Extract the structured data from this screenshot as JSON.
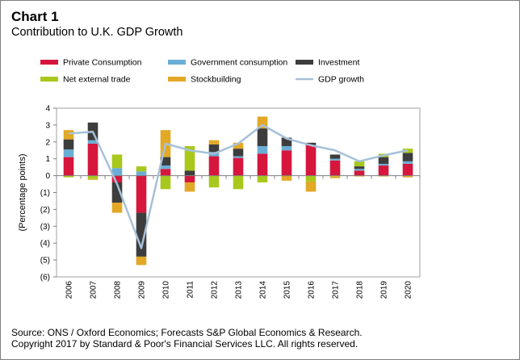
{
  "header": {
    "title": "Chart 1",
    "subtitle": "Contribution to U.K. GDP Growth"
  },
  "footer": {
    "source": "Source: ONS / Oxford Economics; Forecasts S&P Global Economics  & Research.",
    "copyright": "Copyright 2017 by Standard & Poor's Financial Services LLC. All rights reserved."
  },
  "chart_data": {
    "type": "bar",
    "stacked": true,
    "title": "Contribution to U.K. GDP Growth",
    "xlabel": "",
    "ylabel": "(Percentage points)",
    "ylim": [
      -6,
      4
    ],
    "yticks": [
      4,
      3,
      2,
      1,
      0,
      -1,
      -2,
      -3,
      -4,
      -5,
      -6
    ],
    "ytick_labels": [
      "4",
      "3",
      "2",
      "1",
      "0",
      "(1)",
      "(2)",
      "(3)",
      "(4)",
      "(5)",
      "(6)"
    ],
    "grid": false,
    "legend_placement": "top",
    "categories": [
      "2006",
      "2007",
      "2008",
      "2009",
      "2010",
      "2011",
      "2012",
      "2013",
      "2014",
      "2015",
      "2016",
      "2017",
      "2018",
      "2019",
      "2020"
    ],
    "series": [
      {
        "name": "Private Consumption",
        "kind": "bar",
        "color": "#d6163c",
        "values": [
          1.1,
          1.9,
          -0.4,
          -2.2,
          0.4,
          -0.4,
          1.15,
          1.05,
          1.3,
          1.5,
          1.8,
          0.9,
          0.3,
          0.6,
          0.7
        ]
      },
      {
        "name": "Government consumption",
        "kind": "bar",
        "color": "#6aaed6",
        "values": [
          0.45,
          0.2,
          0.45,
          0.25,
          0.2,
          0.0,
          0.25,
          0.1,
          0.45,
          0.25,
          0.0,
          0.1,
          0.1,
          0.1,
          0.15
        ]
      },
      {
        "name": "Investment",
        "kind": "bar",
        "color": "#3d3d3d",
        "values": [
          0.6,
          1.05,
          -1.2,
          -2.6,
          0.5,
          0.3,
          0.45,
          0.45,
          1.05,
          0.5,
          0.15,
          0.25,
          0.15,
          0.4,
          0.5
        ]
      },
      {
        "name": "Net external trade",
        "kind": "bar",
        "color": "#a8c81c",
        "values": [
          -0.1,
          -0.2,
          0.8,
          0.3,
          -0.8,
          1.45,
          -0.7,
          -0.8,
          -0.4,
          0.0,
          -0.35,
          -0.05,
          0.3,
          0.2,
          0.25
        ]
      },
      {
        "name": "Stockbuilding",
        "kind": "bar",
        "color": "#e2a826",
        "values": [
          0.55,
          -0.05,
          -0.6,
          -0.5,
          1.6,
          -0.55,
          0.25,
          0.35,
          0.7,
          -0.3,
          -0.6,
          -0.1,
          -0.05,
          -0.05,
          -0.1
        ]
      },
      {
        "name": "GDP growth",
        "kind": "line",
        "color": "#a6c1d9",
        "values": [
          2.5,
          2.6,
          -0.5,
          -4.3,
          1.9,
          1.5,
          1.3,
          1.9,
          3.0,
          2.2,
          1.8,
          1.5,
          0.85,
          1.2,
          1.5
        ]
      }
    ]
  }
}
